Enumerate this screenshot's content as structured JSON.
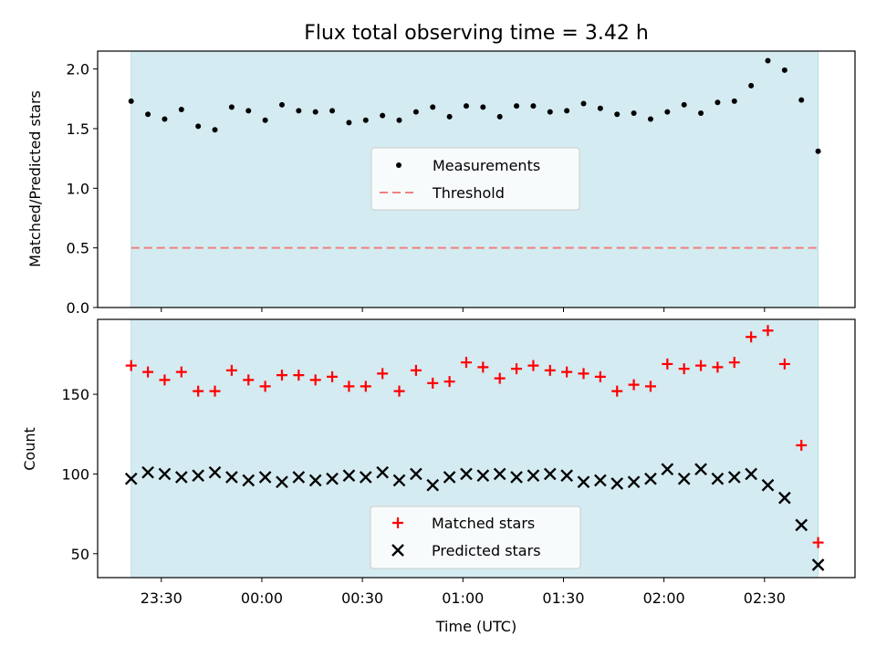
{
  "chart_data": [
    {
      "type": "scatter",
      "title": "Flux total observing time = 3.42 h",
      "ylabel": "Matched/Predicted stars",
      "xlabel": "",
      "ylim": [
        0,
        2.15
      ],
      "yticks": [
        "0.0",
        "0.5",
        "1.0",
        "1.5",
        "2.0"
      ],
      "yticks_values": [
        0,
        0.5,
        1.0,
        1.5,
        2.0
      ],
      "shaded_region": {
        "x_start": "23:21",
        "x_end": "02:46",
        "color": "#d4ebf1"
      },
      "legend": {
        "placement": "center",
        "entries": [
          "Measurements",
          "Threshold"
        ]
      },
      "series": [
        {
          "name": "Measurements",
          "marker": "dot",
          "color": "#000000",
          "x_minutes_from_midnight": [
            -39,
            -34,
            -29,
            -24,
            -19,
            -14,
            -9,
            -4,
            1,
            6,
            11,
            16,
            21,
            26,
            31,
            36,
            41,
            46,
            51,
            56,
            61,
            66,
            71,
            76,
            81,
            86,
            91,
            96,
            101,
            106,
            111,
            116,
            121,
            126,
            131,
            136,
            141,
            146,
            151,
            156,
            161,
            166
          ],
          "values": [
            1.73,
            1.62,
            1.58,
            1.66,
            1.52,
            1.49,
            1.68,
            1.65,
            1.57,
            1.7,
            1.65,
            1.64,
            1.65,
            1.55,
            1.57,
            1.61,
            1.57,
            1.64,
            1.68,
            1.6,
            1.69,
            1.68,
            1.6,
            1.69,
            1.69,
            1.64,
            1.65,
            1.71,
            1.67,
            1.62,
            1.63,
            1.58,
            1.64,
            1.7,
            1.63,
            1.72,
            1.73,
            1.86,
            2.07,
            1.99,
            1.74,
            1.31
          ]
        },
        {
          "name": "Threshold",
          "marker": "dashed-line",
          "color": "#f08080",
          "value": 0.5
        }
      ]
    },
    {
      "type": "scatter",
      "title": "",
      "ylabel": "Count",
      "xlabel": "Time (UTC)",
      "ylim": [
        35,
        197
      ],
      "yticks": [
        "50",
        "100",
        "150"
      ],
      "yticks_values": [
        50,
        100,
        150
      ],
      "xticks": [
        "23:30",
        "00:00",
        "00:30",
        "01:00",
        "01:30",
        "02:00",
        "02:30"
      ],
      "xticks_minutes_from_midnight": [
        -30,
        0,
        30,
        60,
        90,
        120,
        150
      ],
      "xlim_minutes_from_midnight": [
        -49,
        177
      ],
      "legend": {
        "placement": "bottom-center",
        "entries": [
          "Matched stars",
          "Predicted stars"
        ]
      },
      "series": [
        {
          "name": "Matched stars",
          "marker": "plus",
          "color": "#ff0000",
          "x_minutes_from_midnight": [
            -39,
            -34,
            -29,
            -24,
            -19,
            -14,
            -9,
            -4,
            1,
            6,
            11,
            16,
            21,
            26,
            31,
            36,
            41,
            46,
            51,
            56,
            61,
            66,
            71,
            76,
            81,
            86,
            91,
            96,
            101,
            106,
            111,
            116,
            121,
            126,
            131,
            136,
            141,
            146,
            151,
            156,
            161,
            166
          ],
          "values": [
            168,
            164,
            159,
            164,
            152,
            152,
            165,
            159,
            155,
            162,
            162,
            159,
            161,
            155,
            155,
            163,
            152,
            165,
            157,
            158,
            170,
            167,
            160,
            166,
            168,
            165,
            164,
            163,
            161,
            152,
            156,
            155,
            169,
            166,
            168,
            167,
            170,
            186,
            190,
            169,
            118,
            57
          ]
        },
        {
          "name": "Predicted stars",
          "marker": "x",
          "color": "#000000",
          "x_minutes_from_midnight": [
            -39,
            -34,
            -29,
            -24,
            -19,
            -14,
            -9,
            -4,
            1,
            6,
            11,
            16,
            21,
            26,
            31,
            36,
            41,
            46,
            51,
            56,
            61,
            66,
            71,
            76,
            81,
            86,
            91,
            96,
            101,
            106,
            111,
            116,
            121,
            126,
            131,
            136,
            141,
            146,
            151,
            156,
            161,
            166
          ],
          "values": [
            97,
            101,
            100,
            98,
            99,
            101,
            98,
            96,
            98,
            95,
            98,
            96,
            97,
            99,
            98,
            101,
            96,
            100,
            93,
            98,
            100,
            99,
            100,
            98,
            99,
            100,
            99,
            95,
            96,
            94,
            95,
            97,
            103,
            97,
            103,
            97,
            98,
            100,
            93,
            85,
            68,
            43
          ]
        }
      ]
    }
  ]
}
